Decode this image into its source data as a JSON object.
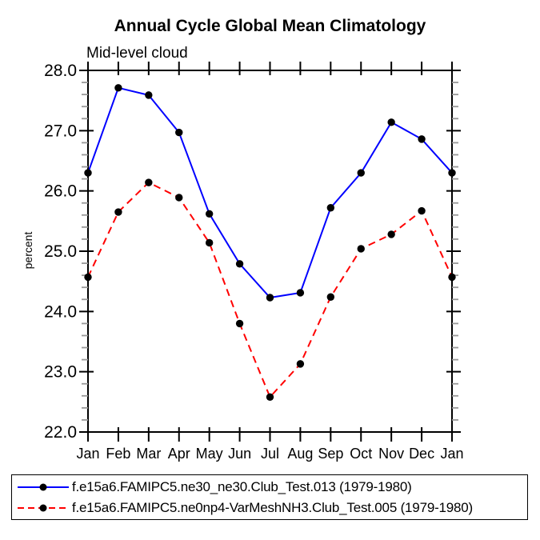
{
  "chart_data": {
    "type": "line",
    "title": "Annual Cycle Global Mean Climatology",
    "subtitle": "Mid-level cloud",
    "ylabel": "percent",
    "categories": [
      "Jan",
      "Feb",
      "Mar",
      "Apr",
      "May",
      "Jun",
      "Jul",
      "Aug",
      "Sep",
      "Oct",
      "Nov",
      "Dec",
      "Jan"
    ],
    "ylim": [
      22.0,
      28.0
    ],
    "ytick_interval": 1.0,
    "ytick_minor_step": 0.2,
    "grid": false,
    "axis_color": "#000000",
    "minor_tick_color": "#999999",
    "legend_position": "bottom-left-box",
    "series": [
      {
        "name": "f.e15a6.FAMIPC5.ne30_ne30.Club_Test.013 (1979-1980)",
        "color": "#0000ff",
        "line_style": "solid",
        "marker": "filled-circle",
        "marker_color": "#000000",
        "values": [
          26.3,
          27.71,
          27.59,
          26.97,
          25.62,
          24.79,
          24.23,
          24.31,
          25.72,
          26.3,
          27.14,
          26.86,
          26.3
        ]
      },
      {
        "name": "f.e15a6.FAMIPC5.ne0np4-VarMeshNH3.Club_Test.005 (1979-1980)",
        "color": "#ff0000",
        "line_style": "dashed",
        "marker": "filled-circle",
        "marker_color": "#000000",
        "values": [
          24.57,
          25.65,
          26.14,
          25.89,
          25.14,
          23.8,
          22.58,
          23.13,
          24.24,
          25.04,
          25.28,
          25.67,
          24.57
        ]
      }
    ]
  }
}
